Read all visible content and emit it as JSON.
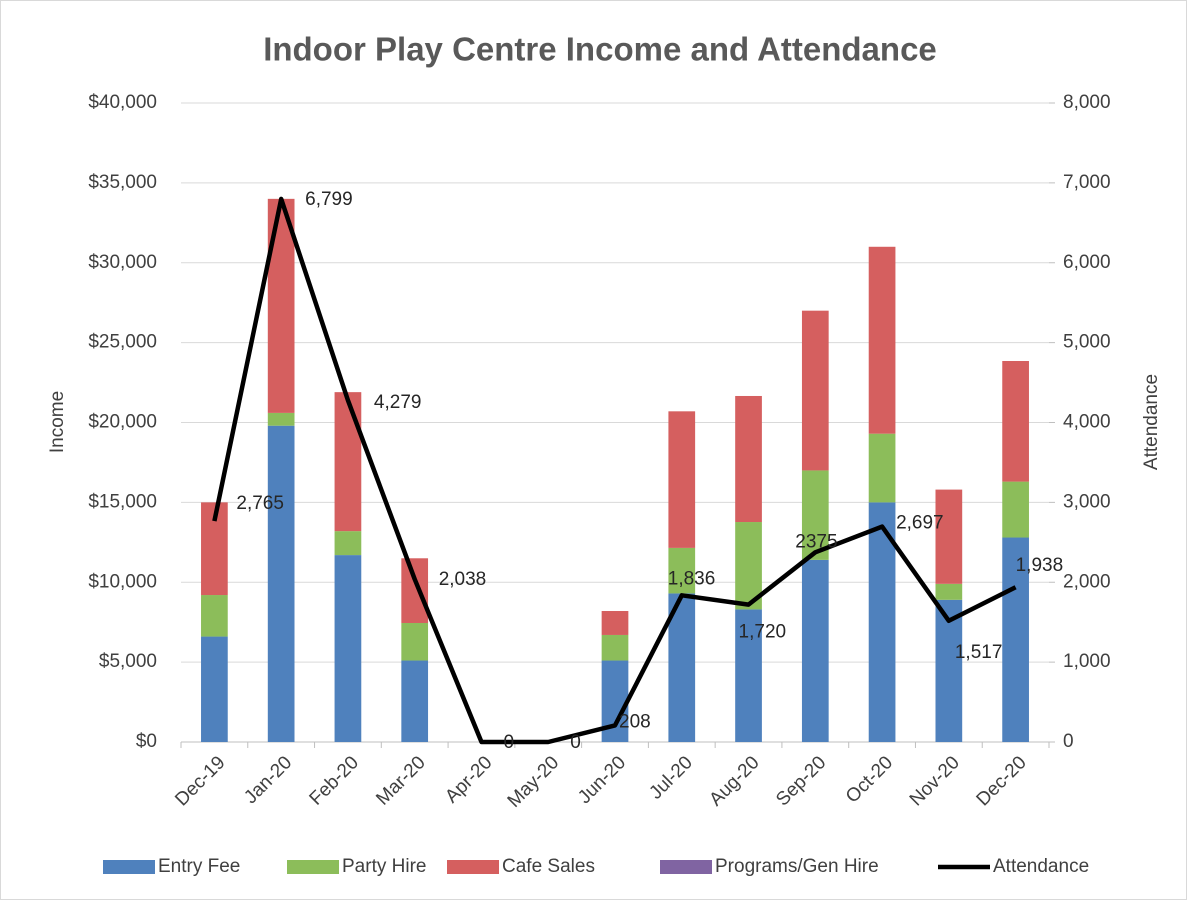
{
  "chart_data": {
    "type": "bar",
    "title": "Indoor Play Centre Income and Attendance",
    "y_label": "Income",
    "y2_label": "Attendance",
    "categories": [
      "Dec-19",
      "Jan-20",
      "Feb-20",
      "Mar-20",
      "Apr-20",
      "May-20",
      "Jun-20",
      "Jul-20",
      "Aug-20",
      "Sep-20",
      "Oct-20",
      "Nov-20",
      "Dec-20"
    ],
    "stacked": true,
    "series": [
      {
        "name": "Entry Fee",
        "color": "#4f81bd",
        "values": [
          6600,
          19800,
          11700,
          5100,
          0,
          0,
          5100,
          9300,
          8300,
          11400,
          15000,
          8900,
          12800
        ]
      },
      {
        "name": "Party Hire",
        "color": "#8cbd5a",
        "values": [
          2600,
          800,
          1500,
          2350,
          0,
          0,
          1600,
          2850,
          5470,
          5600,
          4300,
          1000,
          3500
        ]
      },
      {
        "name": "Cafe Sales",
        "color": "#d55f5f",
        "values": [
          5800,
          13400,
          8700,
          4050,
          0,
          0,
          1500,
          8550,
          7890,
          10000,
          11700,
          5900,
          7550
        ]
      },
      {
        "name": "Programs/Gen Hire",
        "color": "#8064a2",
        "values": [
          0,
          0,
          0,
          0,
          0,
          0,
          0,
          0,
          0,
          0,
          0,
          0,
          0
        ]
      },
      {
        "name": "Attendance",
        "color": "#000000",
        "type": "line",
        "axis": "y2",
        "values": [
          2765,
          6799,
          4279,
          2038,
          0,
          0,
          208,
          1836,
          1720,
          2375,
          2697,
          1517,
          1938
        ],
        "value_labels": [
          "2,765",
          "6,799",
          "4,279",
          "2,038",
          "0",
          "0",
          "208",
          "1,836",
          "1,720",
          "2375",
          "2,697",
          "1,517",
          "1,938"
        ]
      }
    ],
    "ylim": [
      0,
      40000
    ],
    "yticks": [
      {
        "value": 0,
        "label": "$0"
      },
      {
        "value": 5000,
        "label": "$5,000"
      },
      {
        "value": 10000,
        "label": "$10,000"
      },
      {
        "value": 15000,
        "label": "$15,000"
      },
      {
        "value": 20000,
        "label": "$20,000"
      },
      {
        "value": 25000,
        "label": "$25,000"
      },
      {
        "value": 30000,
        "label": "$30,000"
      },
      {
        "value": 35000,
        "label": "$35,000"
      },
      {
        "value": 40000,
        "label": "$40,000"
      }
    ],
    "y2lim": [
      0,
      8000
    ],
    "y2ticks": [
      0,
      {
        "value": 1000,
        "label": "1,000"
      },
      {
        "value": 2000,
        "label": "2,000"
      },
      {
        "value": 3000,
        "label": "3,000"
      },
      {
        "value": 4000,
        "label": "4,000"
      },
      {
        "value": 5000,
        "label": "5,000"
      },
      {
        "value": 6000,
        "label": "6,000"
      },
      {
        "value": 7000,
        "label": "7,000"
      },
      {
        "value": 8000,
        "label": "8,000"
      }
    ],
    "grid": true,
    "legend": "bottom"
  }
}
